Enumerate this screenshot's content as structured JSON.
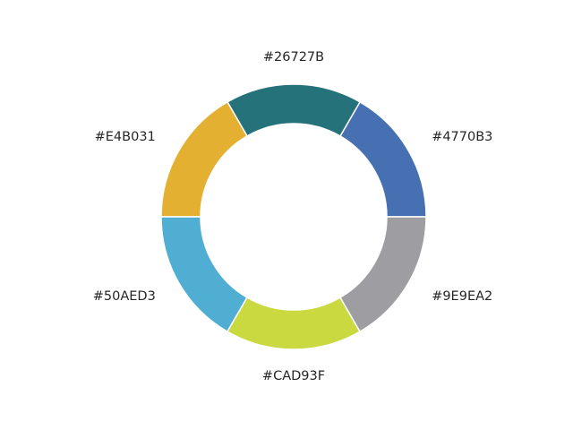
{
  "chart_data": {
    "type": "pie",
    "style": "donut",
    "categories": [
      "#4770B3",
      "#26727B",
      "#E4B031",
      "#50AED3",
      "#CAD93F",
      "#9E9EA2"
    ],
    "values": [
      1,
      1,
      1,
      1,
      1,
      1
    ],
    "colors": [
      "#4770B3",
      "#26727B",
      "#E4B031",
      "#50AED3",
      "#CAD93F",
      "#9E9EA2"
    ],
    "start_angle_deg": 0,
    "direction": "counterclockwise",
    "legend": "none",
    "title": ""
  }
}
